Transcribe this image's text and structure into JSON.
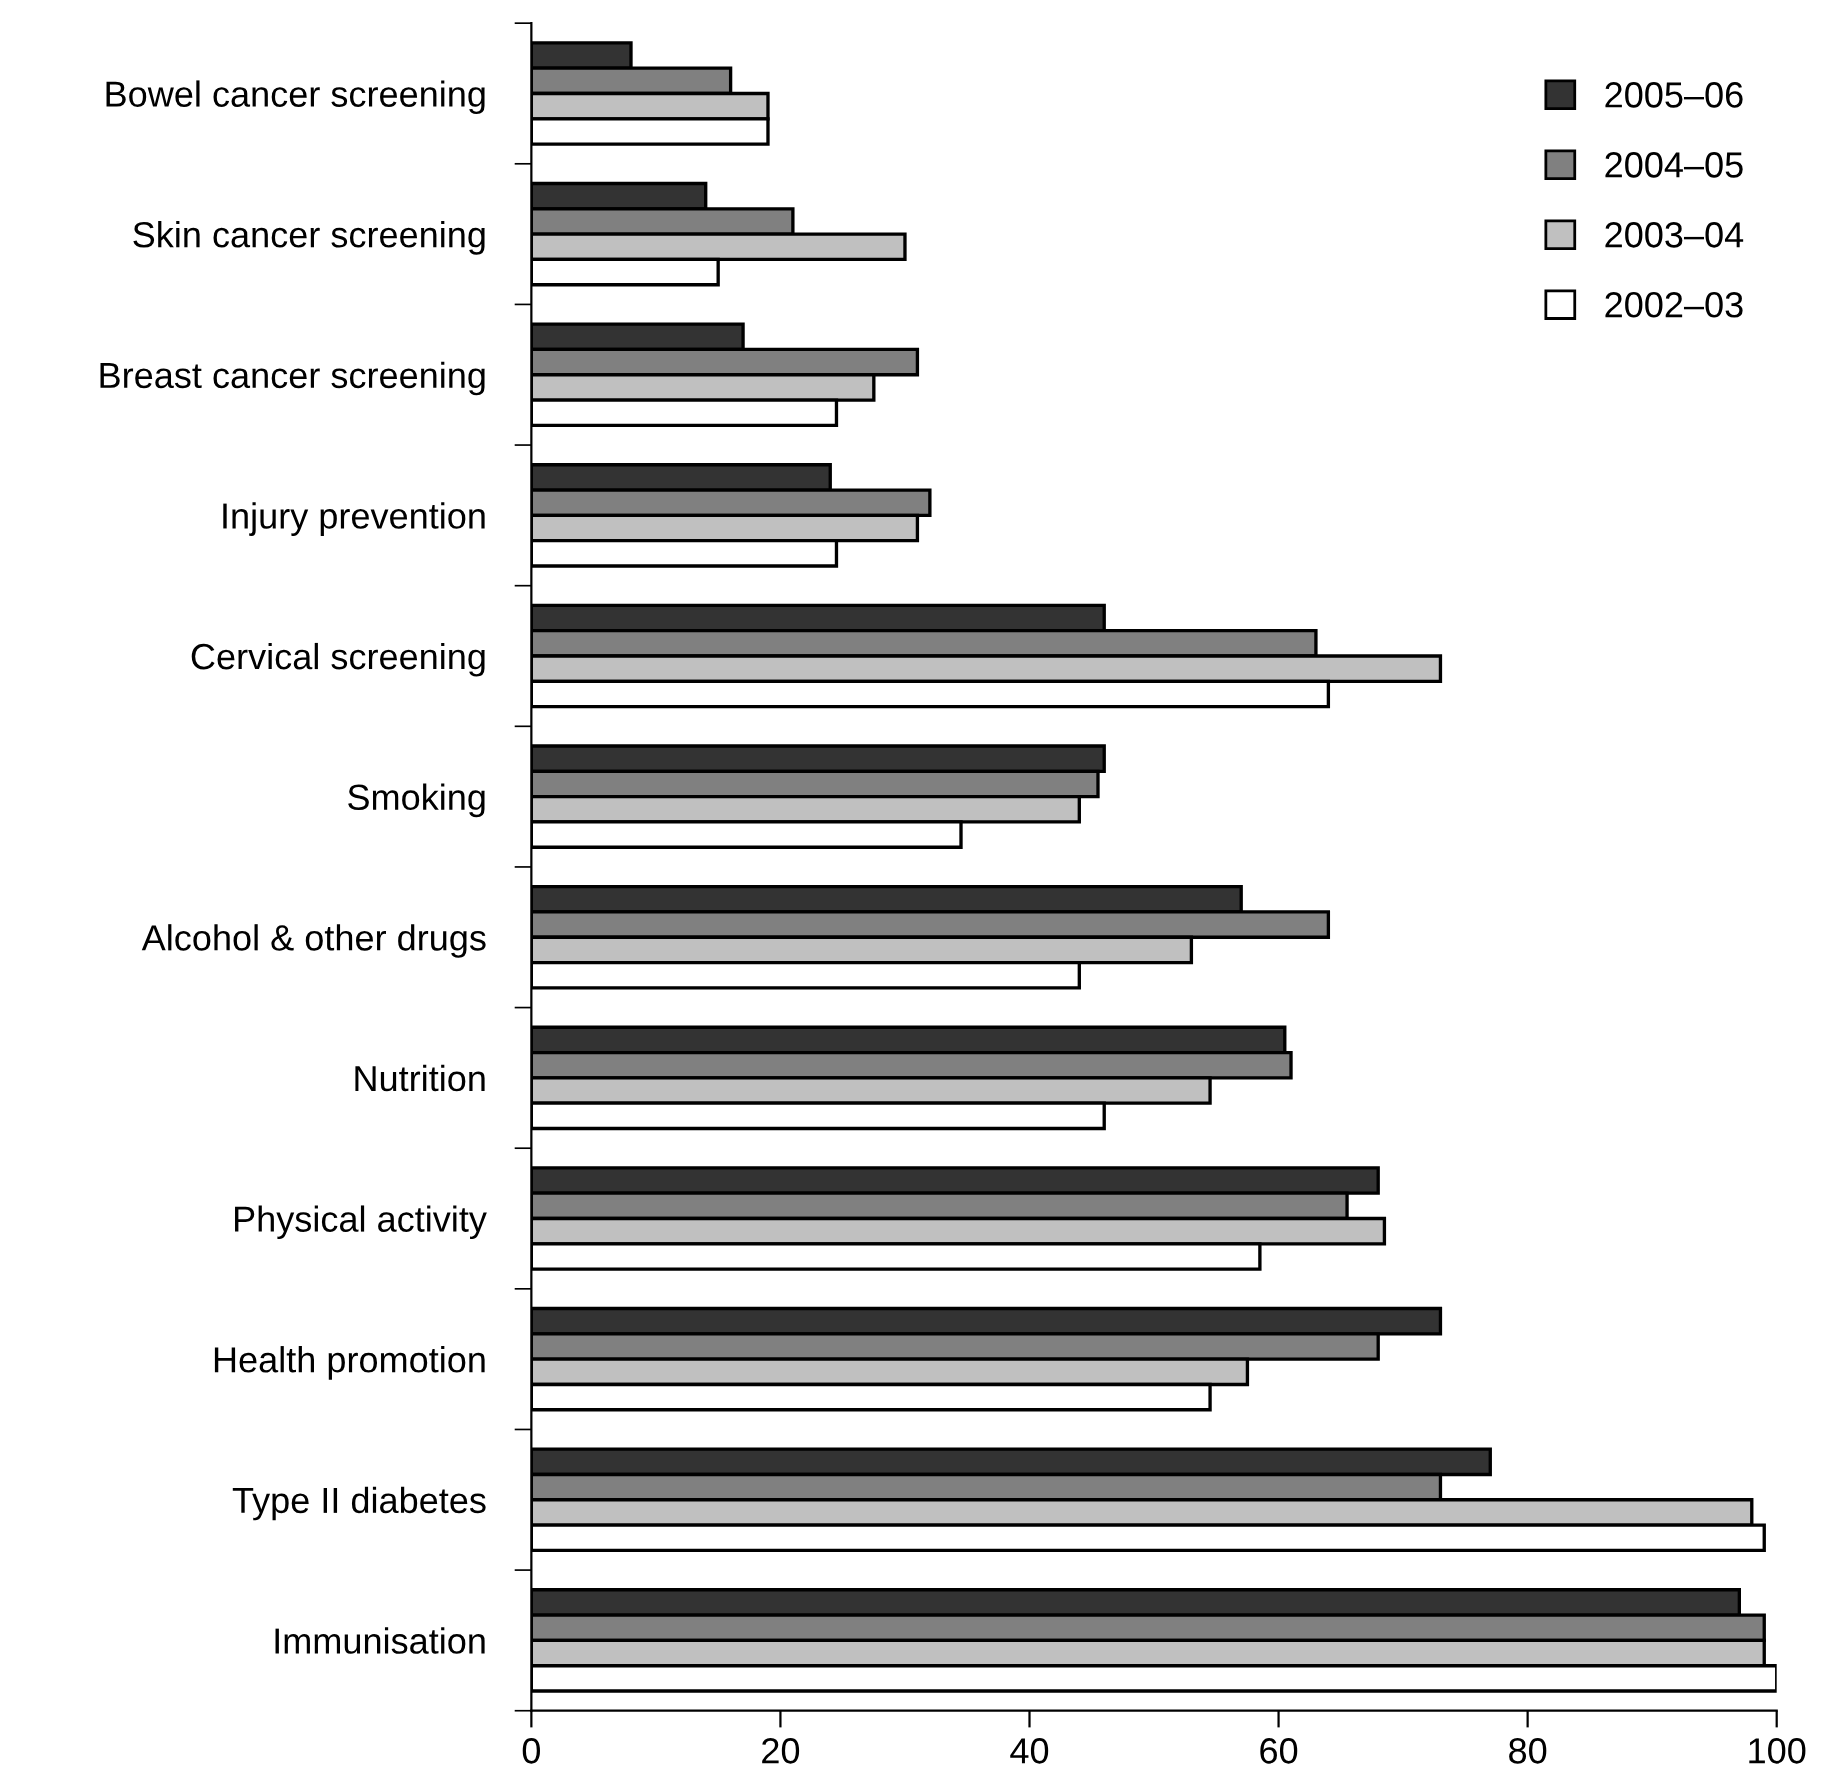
{
  "chart_data": {
    "type": "bar",
    "orientation": "horizontal",
    "categories": [
      "Bowel cancer screening",
      "Skin cancer screening",
      "Breast cancer screening",
      "Injury prevention",
      "Cervical screening",
      "Smoking",
      "Alcohol & other drugs",
      "Nutrition",
      "Physical activity",
      "Health promotion",
      "Type II diabetes",
      "Immunisation"
    ],
    "series": [
      {
        "name": "2005–06",
        "color": "#333333",
        "values": [
          8,
          14,
          17,
          24,
          46,
          46,
          57,
          60.5,
          68,
          73,
          77,
          97
        ]
      },
      {
        "name": "2004–05",
        "color": "#808080",
        "values": [
          16,
          21,
          31,
          32,
          63,
          45.5,
          64,
          61,
          65.5,
          68,
          73,
          99
        ]
      },
      {
        "name": "2003–04",
        "color": "#c0c0c0",
        "values": [
          19,
          30,
          27.5,
          31,
          73,
          44,
          53,
          54.5,
          68.5,
          57.5,
          98,
          99
        ]
      },
      {
        "name": "2002–03",
        "color": "#ffffff",
        "values": [
          19,
          15,
          24.5,
          24.5,
          64,
          34.5,
          44,
          46,
          58.5,
          54.5,
          99,
          100
        ]
      }
    ],
    "xlim": [
      0,
      100
    ],
    "xticks": [
      0,
      20,
      40,
      60,
      80,
      100
    ],
    "grid": false,
    "legend": "top right"
  }
}
